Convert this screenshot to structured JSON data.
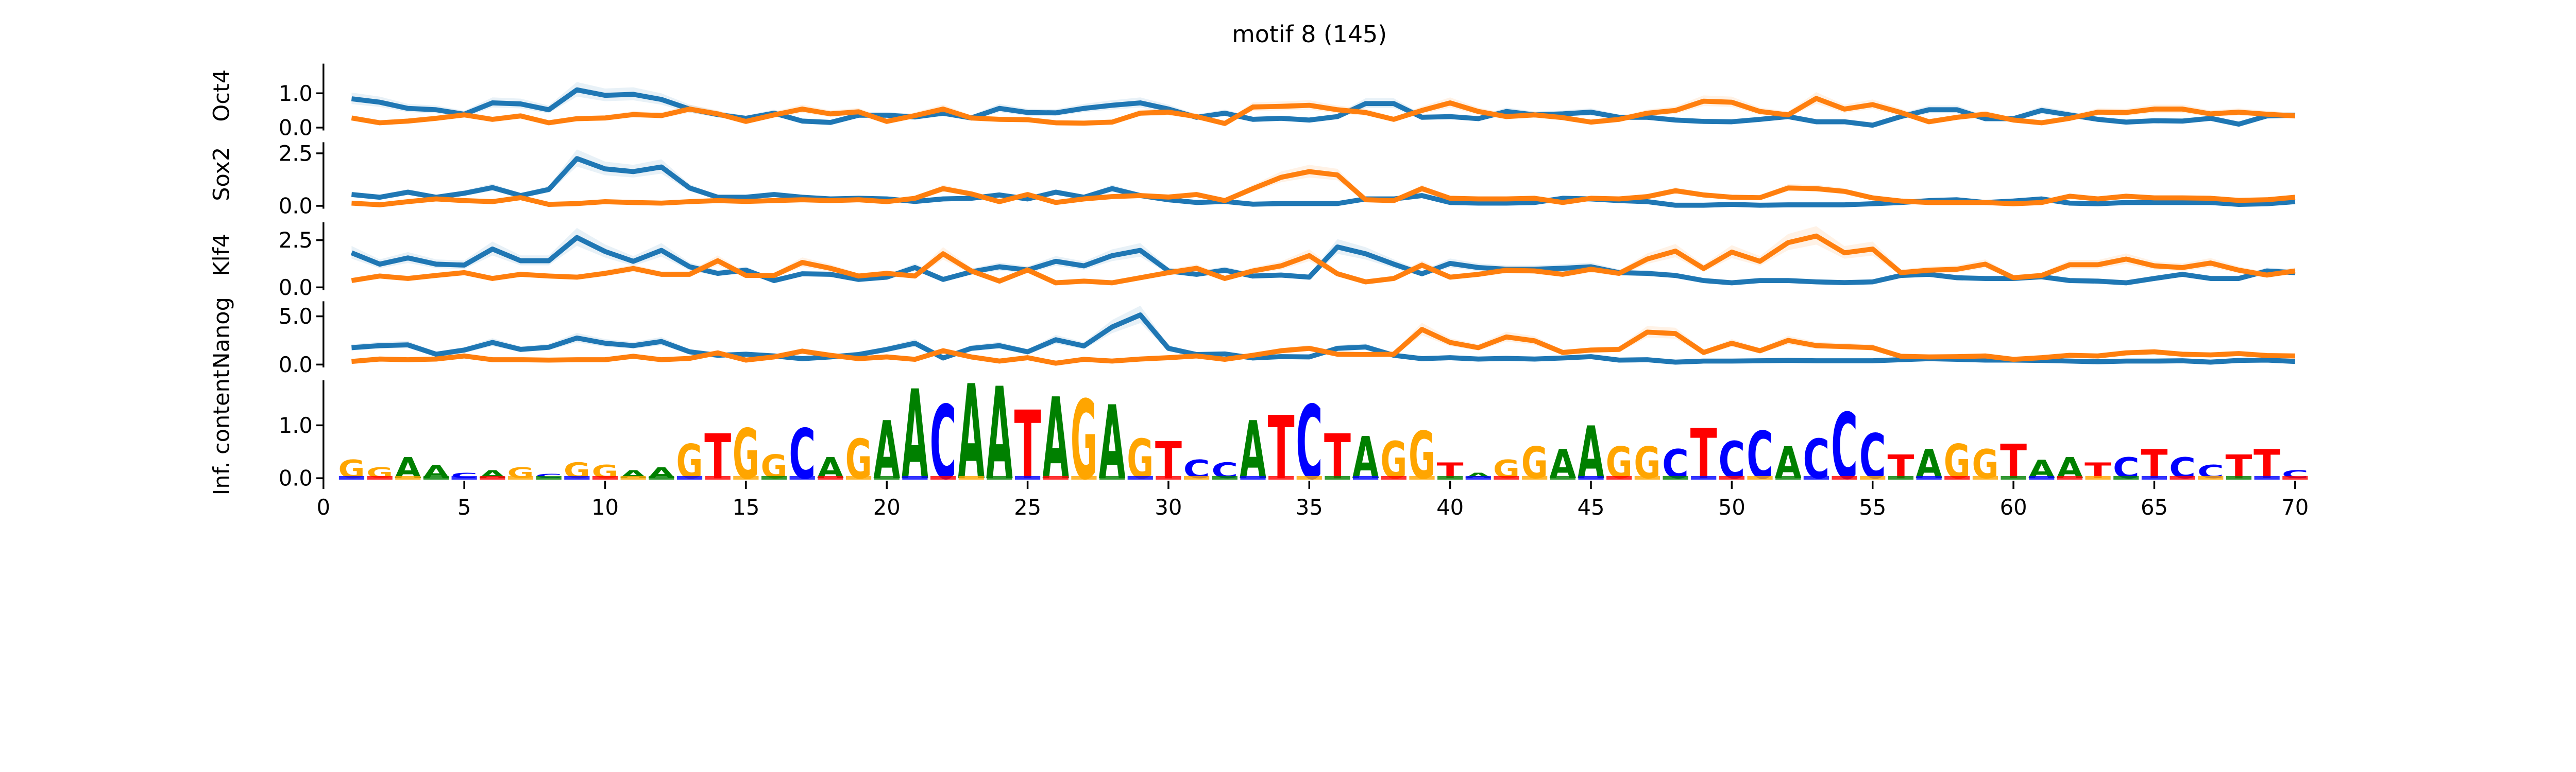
{
  "chart_data": {
    "type": "line",
    "title": "motif 8 (145)",
    "xlabel": "",
    "xlim": [
      0,
      70.5
    ],
    "xticks": [
      "0",
      "5",
      "10",
      "15",
      "20",
      "25",
      "30",
      "35",
      "40",
      "45",
      "50",
      "55",
      "60",
      "65",
      "70"
    ],
    "x": [
      1,
      2,
      3,
      4,
      5,
      6,
      7,
      8,
      9,
      10,
      11,
      12,
      13,
      14,
      15,
      16,
      17,
      18,
      19,
      20,
      21,
      22,
      23,
      24,
      25,
      26,
      27,
      28,
      29,
      30,
      31,
      32,
      33,
      34,
      35,
      36,
      37,
      38,
      39,
      40,
      41,
      42,
      43,
      44,
      45,
      46,
      47,
      48,
      49,
      50,
      51,
      52,
      53,
      54,
      55,
      56,
      57,
      58,
      59,
      60,
      61,
      62,
      63,
      64,
      65,
      66,
      67,
      68,
      69,
      70
    ],
    "colors": {
      "series_a": "#1f77b4",
      "series_b": "#ff7f0e"
    },
    "panels": [
      {
        "ylabel": "Oct4",
        "ylim": [
          0,
          1.4
        ],
        "yticks": [
          "0.0",
          "1.0"
        ],
        "ytick_values": [
          0,
          1
        ],
        "series": [
          {
            "values": [
              0.84,
              0.74,
              0.56,
              0.52,
              0.39,
              0.72,
              0.69,
              0.52,
              1.1,
              0.94,
              0.97,
              0.82,
              0.54,
              0.38,
              0.27,
              0.42,
              0.19,
              0.15,
              0.36,
              0.36,
              0.31,
              0.42,
              0.28,
              0.56,
              0.44,
              0.43,
              0.56,
              0.65,
              0.72,
              0.54,
              0.3,
              0.42,
              0.24,
              0.27,
              0.22,
              0.32,
              0.7,
              0.7,
              0.3,
              0.32,
              0.26,
              0.47,
              0.37,
              0.4,
              0.45,
              0.3,
              0.3,
              0.22,
              0.18,
              0.17,
              0.24,
              0.32,
              0.17,
              0.17,
              0.07,
              0.32,
              0.52,
              0.52,
              0.26,
              0.26,
              0.5,
              0.37,
              0.24,
              0.16,
              0.2,
              0.19,
              0.27,
              0.1,
              0.34,
              0.36
            ]
          },
          {
            "values": [
              0.28,
              0.14,
              0.19,
              0.27,
              0.37,
              0.24,
              0.34,
              0.14,
              0.26,
              0.28,
              0.38,
              0.35,
              0.54,
              0.4,
              0.18,
              0.37,
              0.54,
              0.4,
              0.46,
              0.18,
              0.35,
              0.54,
              0.28,
              0.24,
              0.23,
              0.14,
              0.13,
              0.16,
              0.42,
              0.45,
              0.32,
              0.12,
              0.6,
              0.62,
              0.65,
              0.52,
              0.44,
              0.24,
              0.5,
              0.72,
              0.47,
              0.32,
              0.37,
              0.29,
              0.16,
              0.24,
              0.42,
              0.5,
              0.77,
              0.74,
              0.47,
              0.37,
              0.85,
              0.54,
              0.67,
              0.44,
              0.17,
              0.3,
              0.39,
              0.22,
              0.14,
              0.27,
              0.45,
              0.44,
              0.54,
              0.54,
              0.4,
              0.45,
              0.39,
              0.34
            ]
          }
        ]
      },
      {
        "ylabel": "Sox2",
        "ylim": [
          0,
          2.9
        ],
        "yticks": [
          "0.0",
          "2.5"
        ],
        "ytick_values": [
          0,
          2.5
        ],
        "series": [
          {
            "values": [
              0.54,
              0.41,
              0.65,
              0.41,
              0.6,
              0.87,
              0.49,
              0.78,
              2.25,
              1.76,
              1.63,
              1.85,
              0.85,
              0.41,
              0.41,
              0.54,
              0.41,
              0.33,
              0.36,
              0.33,
              0.21,
              0.33,
              0.36,
              0.52,
              0.33,
              0.65,
              0.41,
              0.82,
              0.49,
              0.29,
              0.16,
              0.21,
              0.08,
              0.11,
              0.11,
              0.11,
              0.33,
              0.33,
              0.49,
              0.16,
              0.13,
              0.13,
              0.16,
              0.36,
              0.33,
              0.25,
              0.2,
              0.03,
              0.03,
              0.07,
              0.03,
              0.05,
              0.05,
              0.05,
              0.1,
              0.16,
              0.25,
              0.29,
              0.16,
              0.23,
              0.33,
              0.13,
              0.1,
              0.16,
              0.16,
              0.16,
              0.16,
              0.07,
              0.1,
              0.2
            ]
          },
          {
            "values": [
              0.13,
              0.05,
              0.2,
              0.33,
              0.25,
              0.2,
              0.39,
              0.07,
              0.11,
              0.2,
              0.16,
              0.13,
              0.2,
              0.25,
              0.21,
              0.25,
              0.29,
              0.25,
              0.29,
              0.2,
              0.36,
              0.82,
              0.57,
              0.2,
              0.54,
              0.16,
              0.33,
              0.44,
              0.49,
              0.42,
              0.54,
              0.25,
              0.82,
              1.36,
              1.63,
              1.47,
              0.29,
              0.25,
              0.82,
              0.36,
              0.33,
              0.33,
              0.36,
              0.16,
              0.36,
              0.33,
              0.44,
              0.72,
              0.52,
              0.41,
              0.39,
              0.85,
              0.82,
              0.69,
              0.38,
              0.23,
              0.16,
              0.16,
              0.16,
              0.1,
              0.16,
              0.46,
              0.33,
              0.46,
              0.38,
              0.38,
              0.36,
              0.26,
              0.29,
              0.41
            ]
          }
        ]
      },
      {
        "ylabel": "Klf4",
        "ylim": [
          0,
          3.1
        ],
        "yticks": [
          "0.0",
          "2.5"
        ],
        "ytick_values": [
          0,
          2.5
        ],
        "series": [
          {
            "values": [
              1.83,
              1.23,
              1.56,
              1.23,
              1.18,
              2.03,
              1.41,
              1.41,
              2.64,
              1.9,
              1.38,
              1.96,
              1.09,
              0.74,
              0.91,
              0.36,
              0.72,
              0.69,
              0.42,
              0.54,
              1.05,
              0.42,
              0.82,
              1.09,
              0.92,
              1.38,
              1.14,
              1.68,
              1.96,
              0.87,
              0.69,
              0.91,
              0.6,
              0.65,
              0.54,
              2.14,
              1.78,
              1.23,
              0.72,
              1.27,
              1.05,
              0.96,
              0.96,
              1.01,
              1.09,
              0.78,
              0.74,
              0.63,
              0.36,
              0.24,
              0.36,
              0.36,
              0.29,
              0.25,
              0.29,
              0.63,
              0.69,
              0.51,
              0.47,
              0.47,
              0.56,
              0.36,
              0.33,
              0.24,
              0.47,
              0.69,
              0.47,
              0.47,
              0.87,
              0.78
            ]
          },
          {
            "values": [
              0.36,
              0.6,
              0.47,
              0.63,
              0.78,
              0.47,
              0.69,
              0.6,
              0.54,
              0.74,
              1.0,
              0.69,
              0.69,
              1.41,
              0.63,
              0.63,
              1.32,
              1.01,
              0.6,
              0.74,
              0.6,
              1.78,
              0.87,
              0.33,
              0.92,
              0.24,
              0.33,
              0.24,
              0.51,
              0.78,
              1.01,
              0.47,
              0.87,
              1.14,
              1.68,
              0.72,
              0.29,
              0.47,
              1.18,
              0.54,
              0.69,
              0.91,
              0.87,
              0.69,
              0.96,
              0.74,
              1.5,
              1.92,
              1.0,
              1.87,
              1.38,
              2.37,
              2.72,
              1.83,
              2.03,
              0.78,
              0.91,
              0.96,
              1.23,
              0.51,
              0.63,
              1.2,
              1.2,
              1.5,
              1.14,
              1.05,
              1.29,
              0.91,
              0.65,
              0.87
            ]
          }
        ]
      },
      {
        "ylabel": "Nanog",
        "ylim": [
          0,
          6.5
        ],
        "yticks": [
          "0.0",
          "5.0"
        ],
        "ytick_values": [
          0,
          5
        ],
        "series": [
          {
            "values": [
              1.75,
              1.96,
              2.04,
              1.07,
              1.5,
              2.29,
              1.57,
              1.79,
              2.75,
              2.21,
              1.96,
              2.39,
              1.32,
              0.96,
              1.07,
              0.89,
              0.61,
              0.79,
              1.04,
              1.57,
              2.21,
              0.68,
              1.68,
              1.96,
              1.32,
              2.57,
              1.93,
              3.89,
              5.14,
              1.68,
              1.04,
              1.1,
              0.68,
              0.82,
              0.79,
              1.68,
              1.82,
              0.96,
              0.61,
              0.71,
              0.57,
              0.64,
              0.57,
              0.68,
              0.82,
              0.46,
              0.5,
              0.25,
              0.36,
              0.36,
              0.39,
              0.43,
              0.39,
              0.39,
              0.39,
              0.5,
              0.61,
              0.54,
              0.46,
              0.46,
              0.43,
              0.36,
              0.29,
              0.36,
              0.36,
              0.39,
              0.25,
              0.43,
              0.46,
              0.32
            ]
          },
          {
            "values": [
              0.32,
              0.57,
              0.5,
              0.57,
              0.89,
              0.5,
              0.5,
              0.46,
              0.5,
              0.5,
              0.86,
              0.5,
              0.64,
              1.21,
              0.46,
              0.79,
              1.39,
              0.96,
              0.61,
              0.79,
              0.54,
              1.43,
              0.79,
              0.36,
              0.71,
              0.14,
              0.54,
              0.36,
              0.57,
              0.71,
              0.89,
              0.54,
              0.96,
              1.43,
              1.68,
              1.07,
              1.04,
              1.07,
              3.64,
              2.29,
              1.75,
              2.86,
              2.46,
              1.25,
              1.5,
              1.57,
              3.36,
              3.21,
              1.25,
              2.21,
              1.43,
              2.5,
              1.96,
              1.86,
              1.75,
              0.86,
              0.79,
              0.82,
              0.89,
              0.54,
              0.71,
              0.96,
              0.89,
              1.21,
              1.32,
              1.07,
              1.0,
              1.14,
              0.93,
              0.89
            ]
          }
        ]
      }
    ],
    "logo": {
      "ylabel": "Inf. content",
      "ylim": [
        0,
        1.9
      ],
      "yticks": [
        "0.0",
        "1.0"
      ],
      "ytick_values": [
        0,
        1
      ],
      "letter_colors": {
        "A": "#008000",
        "C": "#0000ff",
        "G": "#ffa500",
        "T": "#ff0000"
      },
      "letters": [
        "G",
        "G",
        "A",
        "A",
        "C",
        "A",
        "G",
        "C",
        "G",
        "G",
        "A",
        "A",
        "G",
        "T",
        "G",
        "G",
        "C",
        "A",
        "G",
        "A",
        "A",
        "C",
        "A",
        "A",
        "T",
        "A",
        "G",
        "A",
        "G",
        "T",
        "C",
        "C",
        "A",
        "T",
        "C",
        "T",
        "A",
        "G",
        "G",
        "T",
        "A",
        "G",
        "G",
        "A",
        "A",
        "G",
        "G",
        "C",
        "T",
        "C",
        "C",
        "A",
        "C",
        "C",
        "C",
        "T",
        "A",
        "G",
        "G",
        "T",
        "A",
        "A",
        "T",
        "C",
        "T",
        "C",
        "C",
        "T",
        "T",
        "C"
      ],
      "heights": [
        0.35,
        0.2,
        0.4,
        0.25,
        0.1,
        0.15,
        0.2,
        0.08,
        0.3,
        0.25,
        0.15,
        0.2,
        0.65,
        0.85,
        0.95,
        0.45,
        0.95,
        0.4,
        0.75,
        1.1,
        1.7,
        1.4,
        1.8,
        1.75,
        1.3,
        1.55,
        1.5,
        1.4,
        0.75,
        0.7,
        0.35,
        0.3,
        1.1,
        1.2,
        1.4,
        0.85,
        0.8,
        0.7,
        0.9,
        0.3,
        0.1,
        0.35,
        0.6,
        0.55,
        1.0,
        0.6,
        0.6,
        0.55,
        0.95,
        0.7,
        0.9,
        0.6,
        0.75,
        1.25,
        0.85,
        0.45,
        0.55,
        0.65,
        0.55,
        0.65,
        0.35,
        0.4,
        0.3,
        0.4,
        0.55,
        0.4,
        0.25,
        0.45,
        0.55,
        0.15
      ]
    }
  }
}
